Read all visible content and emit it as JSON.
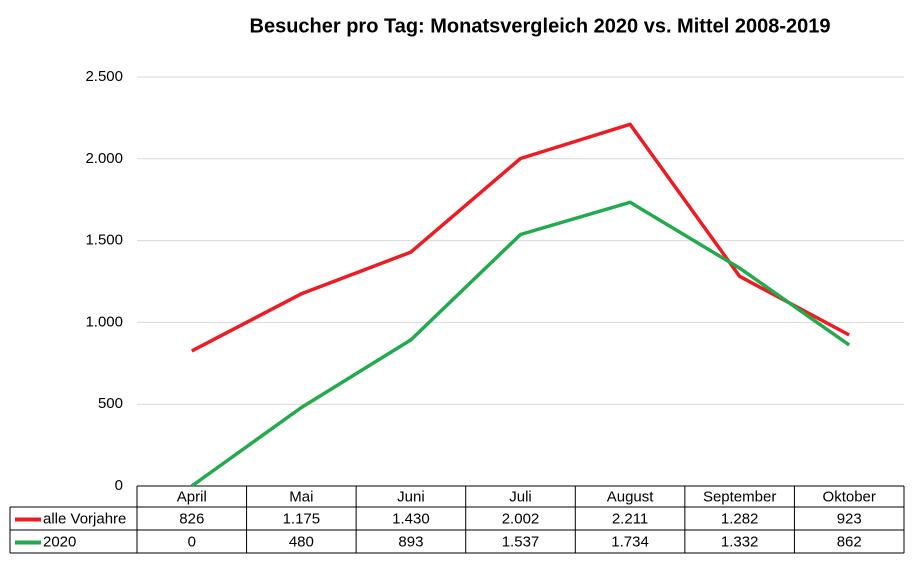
{
  "chart_data": {
    "type": "line",
    "title": "Besucher pro Tag: Monatsvergleich 2020 vs. Mittel 2008-2019",
    "categories": [
      "April",
      "Mai",
      "Juni",
      "Juli",
      "August",
      "September",
      "Oktober"
    ],
    "series": [
      {
        "name": "alle Vorjahre",
        "color": "#ec1c24",
        "values": [
          826,
          1175,
          1430,
          2002,
          2211,
          1282,
          923
        ],
        "value_labels": [
          "826",
          "1.175",
          "1.430",
          "2.002",
          "2.211",
          "1.282",
          "923"
        ]
      },
      {
        "name": "2020",
        "color": "#22aa4c",
        "values": [
          0,
          480,
          893,
          1537,
          1734,
          1332,
          862
        ],
        "value_labels": [
          "0",
          "480",
          "893",
          "1.537",
          "1.734",
          "1.332",
          "862"
        ]
      }
    ],
    "ylim": [
      0,
      2500
    ],
    "yticks": [
      0,
      500,
      {
        "value": 1000,
        "label": "1.000"
      },
      {
        "value": 1500,
        "label": "1.500"
      },
      {
        "value": 2000,
        "label": "2.000"
      },
      {
        "value": 2500,
        "label": "2.500"
      }
    ],
    "grid": true
  }
}
